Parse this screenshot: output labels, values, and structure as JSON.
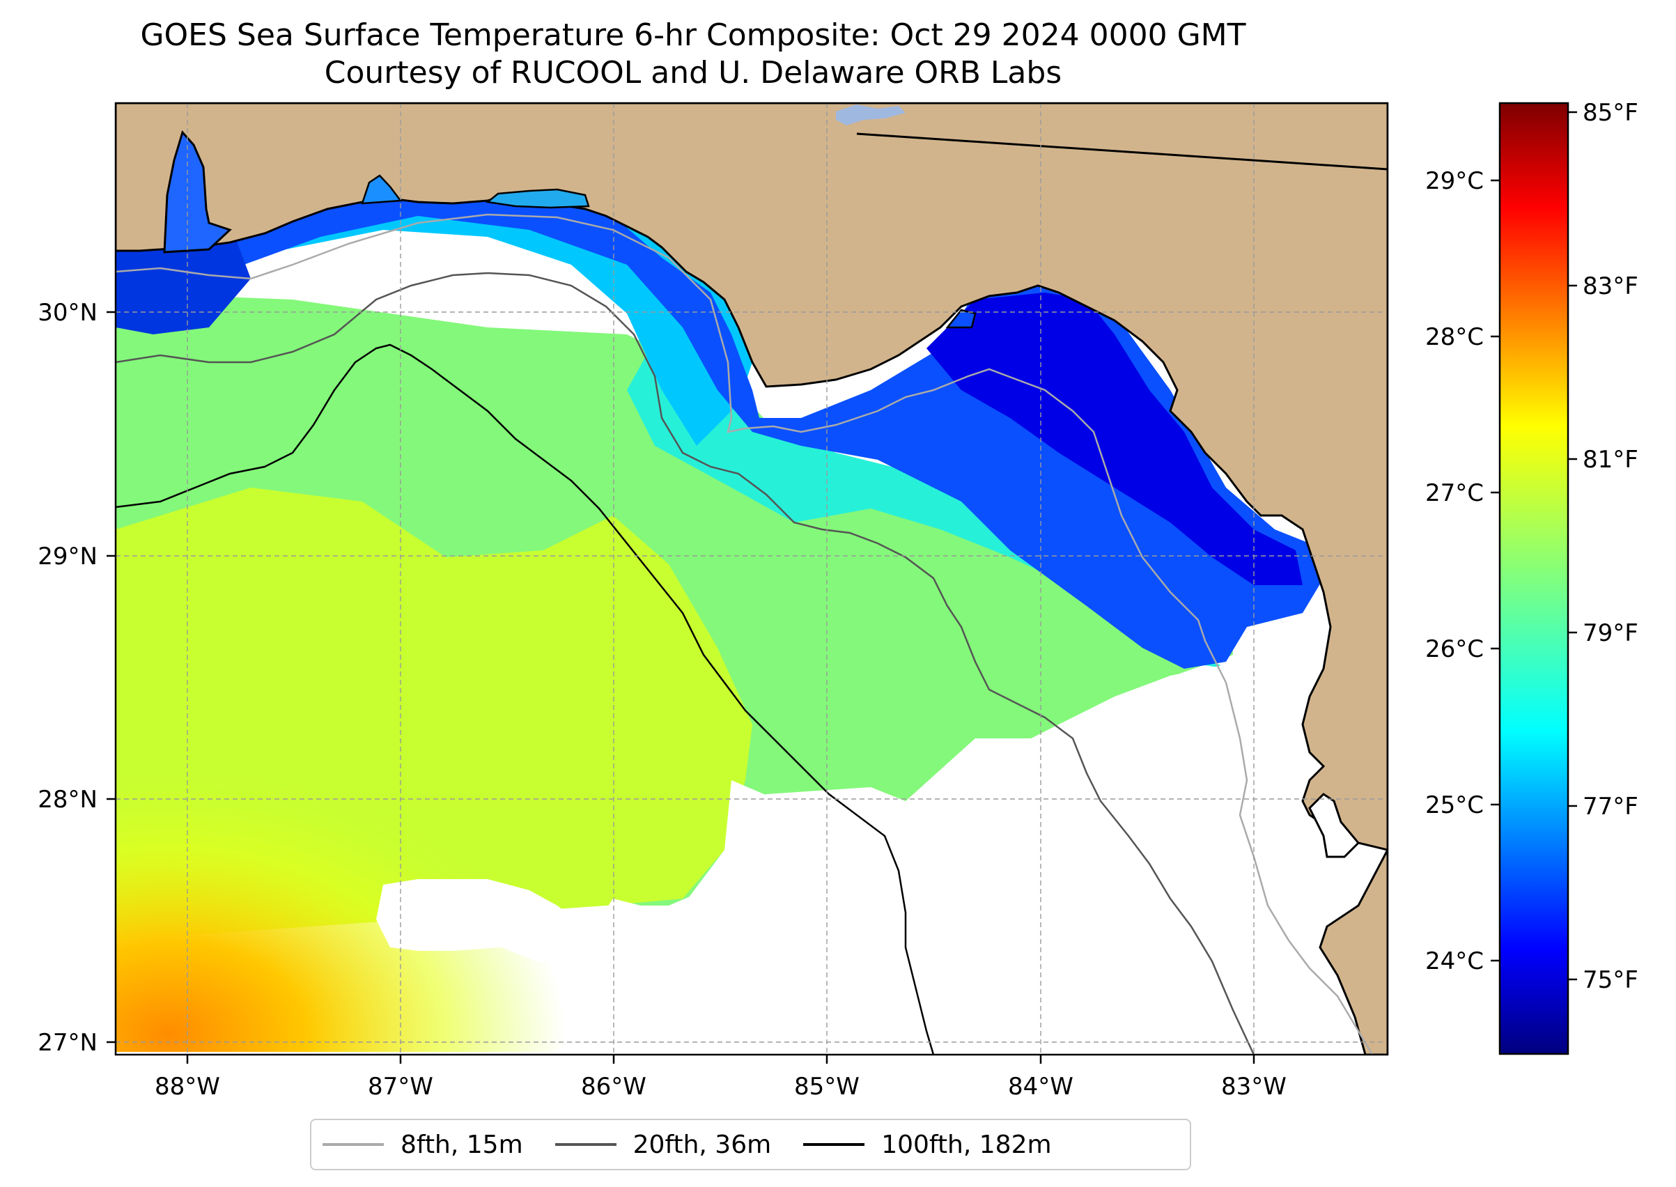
{
  "title": {
    "line1": "GOES Sea Surface Temperature 6-hr Composite: Oct 29 2024 0000 GMT",
    "line2": "Courtesy of RUCOOL and U. Delaware ORB Labs"
  },
  "map": {
    "region": "Northeastern Gulf of Mexico",
    "lon_labels": [
      "88°W",
      "87°W",
      "86°W",
      "85°W",
      "84°W",
      "83°W"
    ],
    "lat_labels": [
      "30°N",
      "29°N",
      "28°N",
      "27°N"
    ],
    "lon_range": [
      -88.33,
      -82.37
    ],
    "lat_range": [
      26.93,
      30.85
    ],
    "land_color": "#d2b48c",
    "no_data_color": "#ffffff",
    "gridlines": true
  },
  "colorbar": {
    "colormap": "jet",
    "celsius_labels": [
      "29°C",
      "28°C",
      "27°C",
      "26°C",
      "25°C",
      "24°C"
    ],
    "fahrenheit_labels": [
      "85°F",
      "83°F",
      "81°F",
      "79°F",
      "77°F",
      "75°F"
    ],
    "range_f": [
      74.3,
      85.2
    ]
  },
  "legend": {
    "items": [
      {
        "label": "8fth, 15m",
        "color": "#aaaaaa"
      },
      {
        "label": "20fth, 36m",
        "color": "#555555"
      },
      {
        "label": "100fth, 182m",
        "color": "#000000"
      }
    ]
  }
}
